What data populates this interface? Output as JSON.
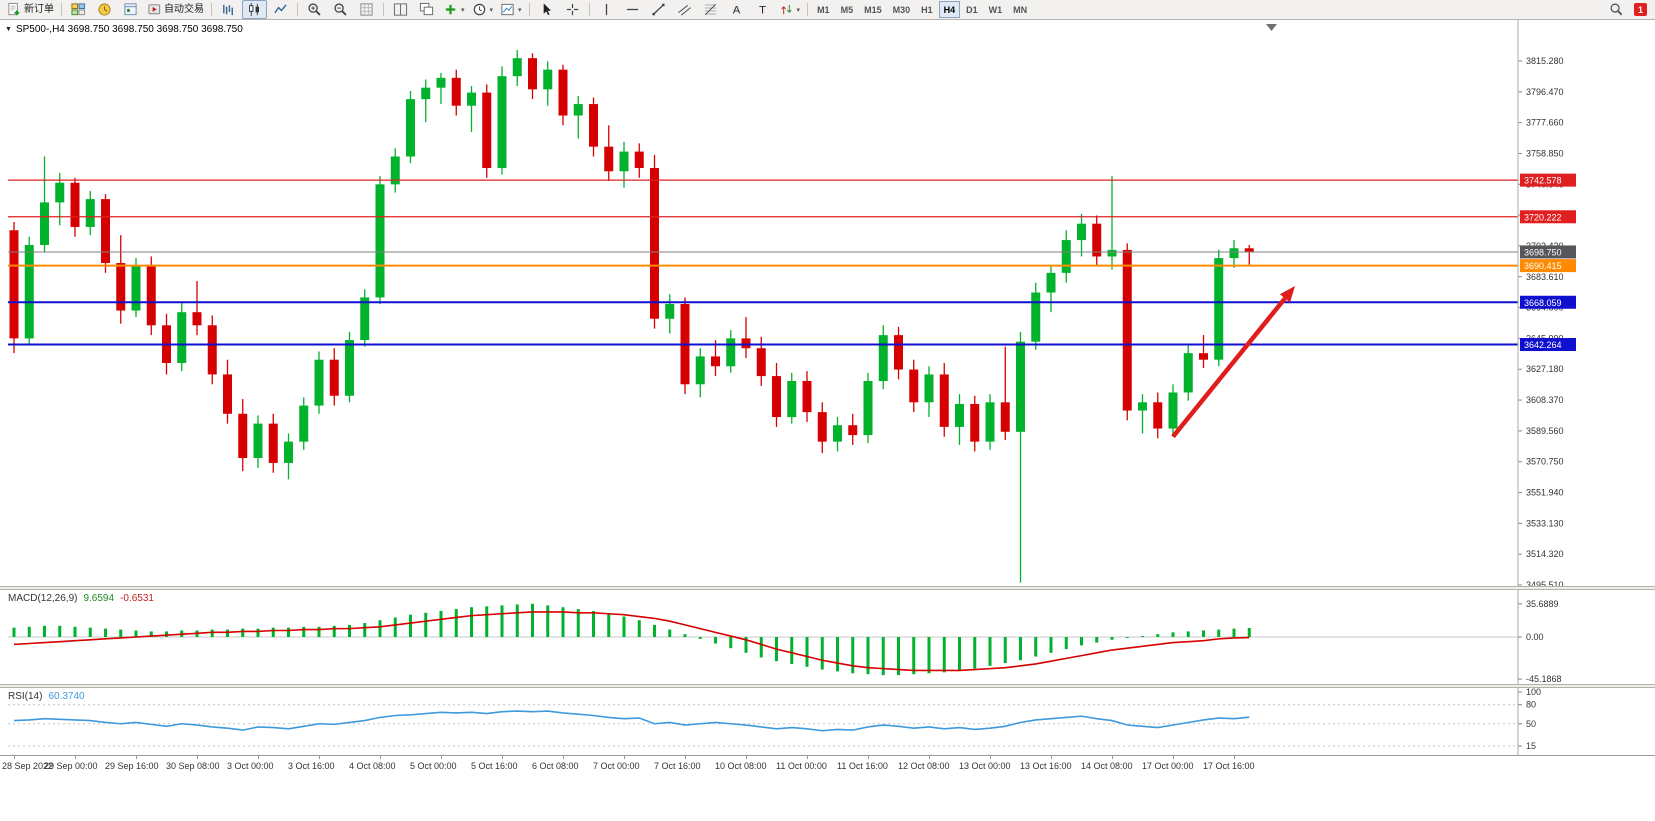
{
  "toolbar": {
    "new_order_label": "新订单",
    "auto_trading_label": "自动交易",
    "buttons": [
      {
        "name": "new-order-button",
        "icon": "neworder",
        "label": "新订单"
      },
      {
        "type": "sep"
      },
      {
        "name": "charts-button",
        "icon": "tiles"
      },
      {
        "name": "market-watch-button",
        "icon": "marketwatch"
      },
      {
        "name": "navigator-button",
        "icon": "navigator"
      },
      {
        "name": "auto-trading-button",
        "icon": "autotrade",
        "label": "自动交易"
      },
      {
        "type": "sep"
      },
      {
        "name": "bar-chart-button",
        "icon": "bars"
      },
      {
        "name": "candlestick-chart-button",
        "icon": "candles",
        "active": true
      },
      {
        "name": "line-chart-button",
        "icon": "linechart"
      },
      {
        "type": "sep"
      },
      {
        "name": "zoom-in-button",
        "icon": "zoomin"
      },
      {
        "name": "zoom-out-button",
        "icon": "zoomout"
      },
      {
        "name": "grid-button",
        "icon": "grid"
      },
      {
        "type": "sep"
      },
      {
        "name": "tile-windows-button",
        "icon": "tile2"
      },
      {
        "name": "cascade-windows-button",
        "icon": "cascade"
      },
      {
        "name": "add-indicator-button",
        "icon": "plusgreen",
        "dropdown": true
      },
      {
        "name": "periods-button",
        "icon": "clock",
        "dropdown": true
      },
      {
        "name": "templates-button",
        "icon": "template",
        "dropdown": true
      },
      {
        "type": "sep"
      },
      {
        "name": "cursor-button",
        "icon": "cursor"
      },
      {
        "name": "crosshair-button",
        "icon": "crosshair"
      },
      {
        "type": "sep"
      },
      {
        "name": "vertical-line-button",
        "icon": "vline"
      },
      {
        "name": "horizontal-line-button",
        "icon": "hline"
      },
      {
        "name": "trendline-button",
        "icon": "trend"
      },
      {
        "name": "channel-button",
        "icon": "channel"
      },
      {
        "name": "fibonacci-button",
        "icon": "fibo"
      },
      {
        "name": "text-button",
        "icon": "textA"
      },
      {
        "name": "label-button",
        "icon": "textT"
      },
      {
        "name": "arrows-button",
        "icon": "arrows",
        "dropdown": true
      },
      {
        "type": "sep"
      },
      {
        "type": "timeframes"
      },
      {
        "type": "spacer"
      },
      {
        "name": "search-button",
        "icon": "search"
      },
      {
        "type": "badge",
        "name": "notification-badge",
        "label": "1"
      }
    ],
    "timeframes": [
      "M1",
      "M5",
      "M15",
      "M30",
      "H1",
      "H4",
      "D1",
      "W1",
      "MN"
    ],
    "active_timeframe": "H4",
    "notification_count": "1"
  },
  "chart": {
    "title": "SP500-,H4  3698.750 3698.750 3698.750 3698.750",
    "symbol": "SP500-",
    "period": "H4"
  },
  "icons": {
    "dropdown_glyph": "▼"
  },
  "price_axis": {
    "ticks": [
      "3815.280",
      "3796.470",
      "3777.660",
      "3758.850",
      "3740.040",
      "3721.230",
      "3702.420",
      "3683.610",
      "3664.800",
      "3645.990",
      "3627.180",
      "3608.370",
      "3589.560",
      "3570.750",
      "3551.940",
      "3533.130",
      "3514.320",
      "3495.510"
    ]
  },
  "hlines": [
    {
      "price": 3742.578,
      "label": "3742.578",
      "color": "#e02020",
      "width": 1.3
    },
    {
      "price": 3720.222,
      "label": "3720.222",
      "color": "#e02020",
      "width": 1.3
    },
    {
      "price": 3698.75,
      "label": "3698.750",
      "color": "#808080",
      "width": 1,
      "badge_bg": "#55555a"
    },
    {
      "price": 3690.415,
      "label": "3690.415",
      "color": "#ff8a00",
      "width": 2
    },
    {
      "price": 3668.059,
      "label": "3668.059",
      "color": "#0f0fd0",
      "width": 2
    },
    {
      "price": 3642.264,
      "label": "3642.264",
      "color": "#0f0fd0",
      "width": 2
    }
  ],
  "chart_data": {
    "type": "candlestick",
    "symbol": "SP500-",
    "timeframe": "H4",
    "y_range": [
      3495.51,
      3822
    ],
    "colors": {
      "bull": "#00b22c",
      "bear": "#d60000",
      "macd_hist": "#00b22c",
      "macd_signal": "#d60000",
      "rsi_line": "#3e9adc",
      "arrow": "#e01c1c"
    },
    "time_labels": [
      "28 Sep 2022",
      "29 Sep 00:00",
      "29 Sep 16:00",
      "30 Sep 08:00",
      "3 Oct 00:00",
      "3 Oct 16:00",
      "4 Oct 08:00",
      "5 Oct 00:00",
      "5 Oct 16:00",
      "6 Oct 08:00",
      "7 Oct 00:00",
      "7 Oct 16:00",
      "10 Oct 08:00",
      "11 Oct 00:00",
      "11 Oct 16:00",
      "12 Oct 08:00",
      "13 Oct 00:00",
      "13 Oct 16:00",
      "14 Oct 08:00",
      "17 Oct 00:00",
      "17 Oct 16:00"
    ],
    "candles": [
      [
        3712,
        3717,
        3637,
        3646
      ],
      [
        3646,
        3708,
        3642,
        3703
      ],
      [
        3703,
        3757,
        3699,
        3729
      ],
      [
        3729,
        3747,
        3715,
        3741
      ],
      [
        3741,
        3744,
        3708,
        3714
      ],
      [
        3714,
        3736,
        3709,
        3731
      ],
      [
        3731,
        3734,
        3686,
        3692
      ],
      [
        3692,
        3709,
        3655,
        3663
      ],
      [
        3663,
        3695,
        3659,
        3690
      ],
      [
        3690,
        3696,
        3648,
        3654
      ],
      [
        3654,
        3661,
        3624,
        3631
      ],
      [
        3631,
        3668,
        3626,
        3662
      ],
      [
        3662,
        3681,
        3648,
        3654
      ],
      [
        3654,
        3660,
        3618,
        3624
      ],
      [
        3624,
        3633,
        3594,
        3600
      ],
      [
        3600,
        3609,
        3565,
        3573
      ],
      [
        3573,
        3599,
        3567,
        3594
      ],
      [
        3594,
        3600,
        3564,
        3570
      ],
      [
        3570,
        3588,
        3560,
        3583
      ],
      [
        3583,
        3610,
        3578,
        3605
      ],
      [
        3605,
        3638,
        3600,
        3633
      ],
      [
        3633,
        3640,
        3605,
        3611
      ],
      [
        3611,
        3650,
        3607,
        3645
      ],
      [
        3645,
        3676,
        3641,
        3671
      ],
      [
        3671,
        3745,
        3667,
        3740
      ],
      [
        3740,
        3762,
        3735,
        3757
      ],
      [
        3757,
        3797,
        3753,
        3792
      ],
      [
        3792,
        3804,
        3778,
        3799
      ],
      [
        3799,
        3808,
        3789,
        3805
      ],
      [
        3805,
        3810,
        3782,
        3788
      ],
      [
        3788,
        3800,
        3772,
        3796
      ],
      [
        3796,
        3801,
        3744,
        3750
      ],
      [
        3750,
        3812,
        3746,
        3806
      ],
      [
        3806,
        3822,
        3800,
        3817
      ],
      [
        3817,
        3820,
        3792,
        3798
      ],
      [
        3798,
        3815,
        3788,
        3810
      ],
      [
        3810,
        3813,
        3776,
        3782
      ],
      [
        3782,
        3794,
        3768,
        3789
      ],
      [
        3789,
        3793,
        3757,
        3763
      ],
      [
        3763,
        3776,
        3742,
        3748
      ],
      [
        3748,
        3766,
        3738,
        3760
      ],
      [
        3760,
        3765,
        3744,
        3750
      ],
      [
        3750,
        3758,
        3652,
        3658
      ],
      [
        3658,
        3673,
        3649,
        3667
      ],
      [
        3667,
        3671,
        3612,
        3618
      ],
      [
        3618,
        3640,
        3610,
        3635
      ],
      [
        3635,
        3645,
        3623,
        3629
      ],
      [
        3629,
        3651,
        3625,
        3646
      ],
      [
        3646,
        3659,
        3634,
        3640
      ],
      [
        3640,
        3647,
        3617,
        3623
      ],
      [
        3623,
        3631,
        3592,
        3598
      ],
      [
        3598,
        3625,
        3594,
        3620
      ],
      [
        3620,
        3626,
        3595,
        3601
      ],
      [
        3601,
        3607,
        3576,
        3583
      ],
      [
        3583,
        3598,
        3577,
        3593
      ],
      [
        3593,
        3600,
        3581,
        3587
      ],
      [
        3587,
        3625,
        3582,
        3620
      ],
      [
        3620,
        3654,
        3615,
        3648
      ],
      [
        3648,
        3653,
        3621,
        3627
      ],
      [
        3627,
        3633,
        3601,
        3607
      ],
      [
        3607,
        3629,
        3598,
        3624
      ],
      [
        3624,
        3631,
        3586,
        3592
      ],
      [
        3592,
        3612,
        3581,
        3606
      ],
      [
        3606,
        3611,
        3577,
        3583
      ],
      [
        3583,
        3612,
        3578,
        3607
      ],
      [
        3607,
        3641,
        3584,
        3589
      ],
      [
        3589,
        3650,
        3497,
        3644
      ],
      [
        3644,
        3680,
        3639,
        3674
      ],
      [
        3674,
        3691,
        3662,
        3686
      ],
      [
        3686,
        3712,
        3680,
        3706
      ],
      [
        3706,
        3722,
        3696,
        3716
      ],
      [
        3716,
        3721,
        3690,
        3696
      ],
      [
        3696,
        3745,
        3688,
        3700
      ],
      [
        3700,
        3704,
        3596,
        3602
      ],
      [
        3602,
        3612,
        3588,
        3607
      ],
      [
        3607,
        3613,
        3585,
        3591
      ],
      [
        3591,
        3618,
        3586,
        3613
      ],
      [
        3613,
        3642,
        3608,
        3637
      ],
      [
        3637,
        3648,
        3628,
        3633
      ],
      [
        3633,
        3700,
        3629,
        3695
      ],
      [
        3695,
        3706,
        3689,
        3701
      ],
      [
        3701,
        3703,
        3691,
        3698.75
      ]
    ],
    "macd": {
      "label": "MACD(12,26,9)",
      "main_value": "9.6594",
      "signal_value": "-0.6531",
      "axis_labels": [
        "35.6889",
        "0.00",
        "-45.1868"
      ],
      "histogram": [
        10,
        11,
        12,
        12,
        11,
        10,
        9,
        8,
        7,
        6,
        6,
        7,
        7,
        8,
        8,
        9,
        9,
        10,
        10,
        11,
        11,
        12,
        13,
        15,
        18,
        21,
        24,
        26,
        28,
        30,
        32,
        33,
        34,
        35,
        35.7,
        34,
        32,
        30,
        28,
        25,
        22,
        18,
        13,
        8,
        3,
        -2,
        -7,
        -12,
        -17,
        -22,
        -26,
        -29,
        -32,
        -35,
        -37,
        -39,
        -40,
        -41,
        -41,
        -40,
        -39,
        -38,
        -36,
        -34,
        -31,
        -28,
        -25,
        -21,
        -17,
        -13,
        -9,
        -6,
        -3,
        -1,
        1,
        3,
        5,
        6,
        7,
        8,
        9,
        9.6594
      ],
      "signal": [
        -8,
        -7,
        -6,
        -5,
        -4,
        -3,
        -2,
        -1,
        0,
        1,
        2,
        3,
        4,
        5,
        5,
        6,
        6,
        7,
        7,
        8,
        8,
        9,
        9,
        10,
        11,
        13,
        15,
        17,
        19,
        21,
        23,
        24,
        25,
        26,
        27,
        27,
        27,
        26,
        26,
        25,
        24,
        22,
        20,
        17,
        13,
        9,
        5,
        1,
        -3,
        -8,
        -13,
        -17,
        -21,
        -25,
        -28,
        -31,
        -33,
        -34,
        -35,
        -36,
        -36,
        -36,
        -36,
        -35,
        -34,
        -33,
        -31,
        -29,
        -26,
        -23,
        -20,
        -17,
        -14,
        -12,
        -10,
        -8,
        -6,
        -5,
        -4,
        -2,
        -1,
        -0.6531
      ]
    },
    "rsi": {
      "label": "RSI(14)",
      "value": "60.3740",
      "axis_labels": [
        "100",
        "80",
        "50",
        "15"
      ],
      "levels": [
        80,
        50,
        15
      ],
      "values": [
        55,
        56,
        58,
        57,
        56,
        55,
        52,
        50,
        52,
        49,
        46,
        50,
        48,
        45,
        43,
        40,
        45,
        44,
        42,
        46,
        50,
        49,
        52,
        55,
        60,
        63,
        64,
        66,
        68,
        67,
        68,
        66,
        69,
        70,
        69,
        70,
        67,
        65,
        63,
        60,
        58,
        59,
        50,
        52,
        48,
        50,
        52,
        50,
        48,
        45,
        42,
        44,
        42,
        39,
        41,
        40,
        45,
        48,
        46,
        43,
        45,
        42,
        44,
        41,
        43,
        46,
        52,
        56,
        58,
        60,
        62,
        58,
        55,
        48,
        46,
        44,
        48,
        52,
        56,
        59,
        58,
        60.374
      ]
    },
    "annotation_arrow": {
      "from": {
        "bar": 76,
        "price": 3586
      },
      "to": {
        "bar": 84,
        "price": 3678
      }
    }
  }
}
